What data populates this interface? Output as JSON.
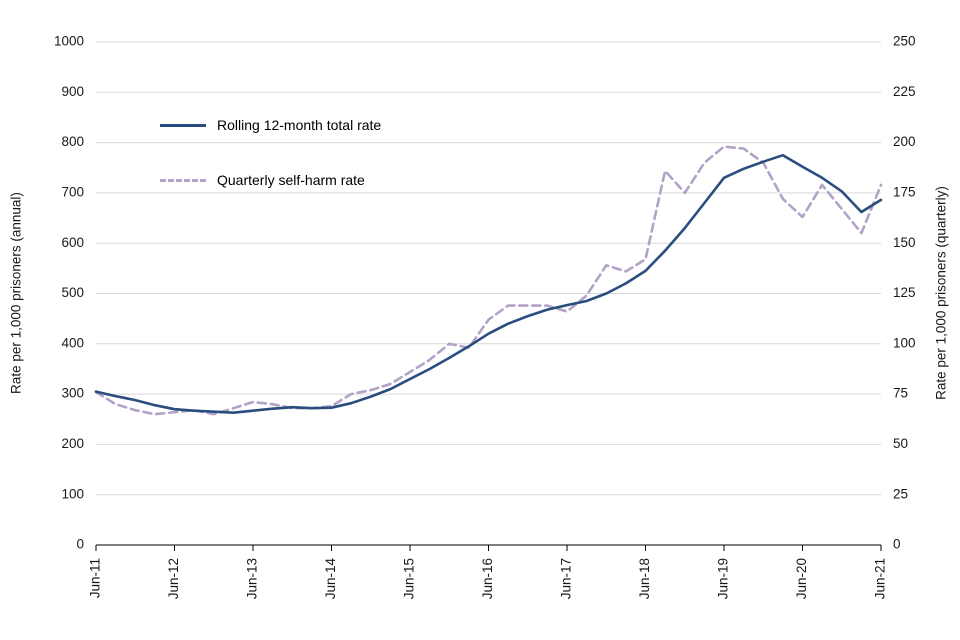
{
  "chart_data": {
    "type": "line",
    "title": "",
    "grid": true,
    "legend_position": "inside-top-left",
    "x_tick_labels": [
      "Jun-11",
      "Jun-12",
      "Jun-13",
      "Jun-14",
      "Jun-15",
      "Jun-16",
      "Jun-17",
      "Jun-18",
      "Jun-19",
      "Jun-20",
      "Jun-21"
    ],
    "quarters_per_tick": 4,
    "left_axis": {
      "label": "Rate per 1,000 prisoners (annual)",
      "min": 0,
      "max": 1000,
      "step": 100
    },
    "right_axis": {
      "label": "Rate per 1,000 prisoners (quarterly)",
      "min": 0,
      "max": 250,
      "step": 25
    },
    "colors": {
      "rolling_line": "#2a4d7f",
      "quarterly_line": "#b3a2c7",
      "gridline": "#d9d9d9",
      "axis": "#000000"
    },
    "series": [
      {
        "name": "Rolling 12-month total rate",
        "axis": "left",
        "style": "solid",
        "color": "#2a4d7f",
        "values": [
          305,
          296,
          288,
          278,
          270,
          267,
          265,
          263,
          267,
          271,
          274,
          272,
          273,
          282,
          295,
          310,
          330,
          350,
          372,
          395,
          420,
          440,
          455,
          468,
          477,
          485,
          500,
          520,
          545,
          585,
          630,
          680,
          730,
          748,
          762,
          775,
          752,
          730,
          703,
          662,
          686
        ]
      },
      {
        "name": "Quarterly self-harm rate",
        "axis": "right",
        "style": "dashed",
        "color": "#b3a2c7",
        "values": [
          76,
          70,
          67,
          65,
          66,
          67,
          65,
          68,
          71,
          70,
          68,
          68,
          69,
          75,
          77,
          80,
          86,
          92,
          100,
          98,
          112,
          119,
          119,
          119,
          116,
          124,
          139,
          136,
          142,
          186,
          175,
          190,
          198,
          197,
          190,
          172,
          163,
          179,
          167,
          155,
          179
        ]
      }
    ]
  }
}
